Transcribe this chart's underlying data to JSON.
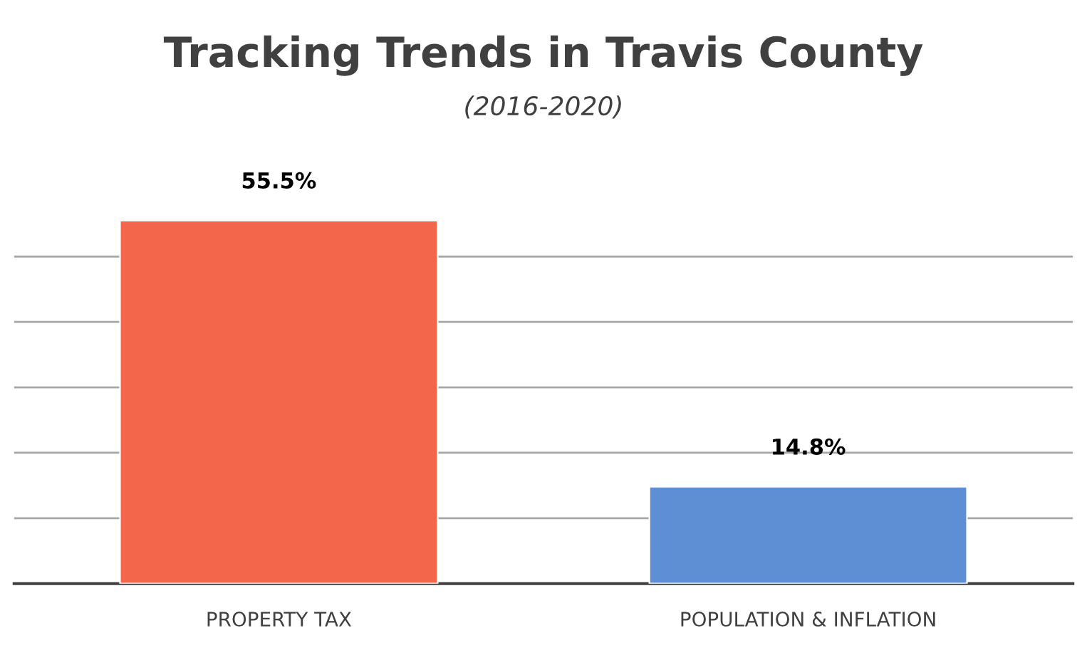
{
  "chart_data": {
    "type": "bar",
    "title": "Tracking Trends in Travis County",
    "subtitle": "(2016-2020)",
    "categories": [
      "PROPERTY TAX",
      "POPULATION & INFLATION"
    ],
    "values": [
      55.5,
      14.8
    ],
    "colors": [
      "#f4664b",
      "#5e8fd5"
    ],
    "value_labels": [
      "55.5%",
      "14.8%"
    ],
    "yticks": [
      {
        "value": 0,
        "label": null
      },
      {
        "value": 10,
        "label": null
      },
      {
        "value": 20,
        "label": null
      },
      {
        "value": 30,
        "label": null
      },
      {
        "value": 40,
        "label": null
      },
      {
        "value": 50,
        "label": null
      }
    ],
    "tick_labels": "x",
    "grid": "y",
    "legend": false
  }
}
